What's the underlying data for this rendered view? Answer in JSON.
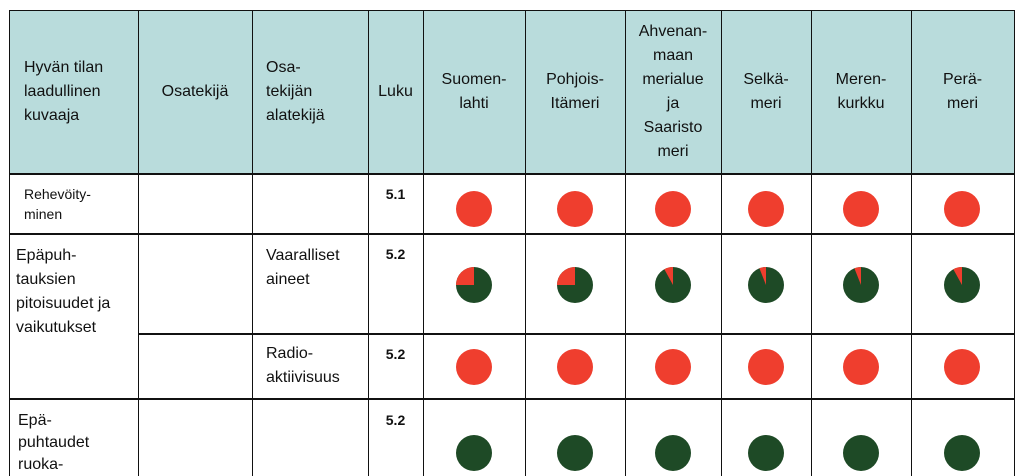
{
  "colors": {
    "header_bg": "#b9dcdc",
    "red": "#ef3e2e",
    "dark_green": "#1e4a26"
  },
  "headers": {
    "descriptor": "Hyvän tilan\nlaadullinen\nkuvaaja",
    "component": "Osatekijä",
    "subcomponent": "Osa-\ntekijän\nalatekijä",
    "chapter": "Luku",
    "areas": [
      "Suomen-\nlahti",
      "Pohjois-\nItämeri",
      "Ahvenan-\nmaan\nmerialue\nja\nSaaristo\nmeri",
      "Selkä-\nmeri",
      "Meren-\nkurkku",
      "Perä-\nmeri"
    ]
  },
  "rows": [
    {
      "descriptor": "Rehevöity-\nminen",
      "component": "",
      "subcomponent": "",
      "chapter": "5.1",
      "red_fraction": [
        1,
        1,
        1,
        1,
        1,
        1
      ]
    },
    {
      "descriptor": "Epäpuh-\ntauksien\npitoisuudet ja\nvaikutukset",
      "component": "",
      "subcomponent": "Vaaralliset\naineet",
      "chapter": "5.2",
      "red_fraction": [
        0.25,
        0.25,
        0.08,
        0.06,
        0.06,
        0.08
      ]
    },
    {
      "descriptor": "",
      "component": "",
      "subcomponent": "Radio-\naktiivisuus",
      "chapter": "5.2",
      "red_fraction": [
        1,
        1,
        1,
        1,
        1,
        1
      ]
    },
    {
      "descriptor": "Epä-\npuhtaudet\nruoka-",
      "component": "",
      "subcomponent": "",
      "chapter": "5.2",
      "red_fraction": [
        0,
        0,
        0,
        0,
        0,
        0
      ]
    }
  ]
}
